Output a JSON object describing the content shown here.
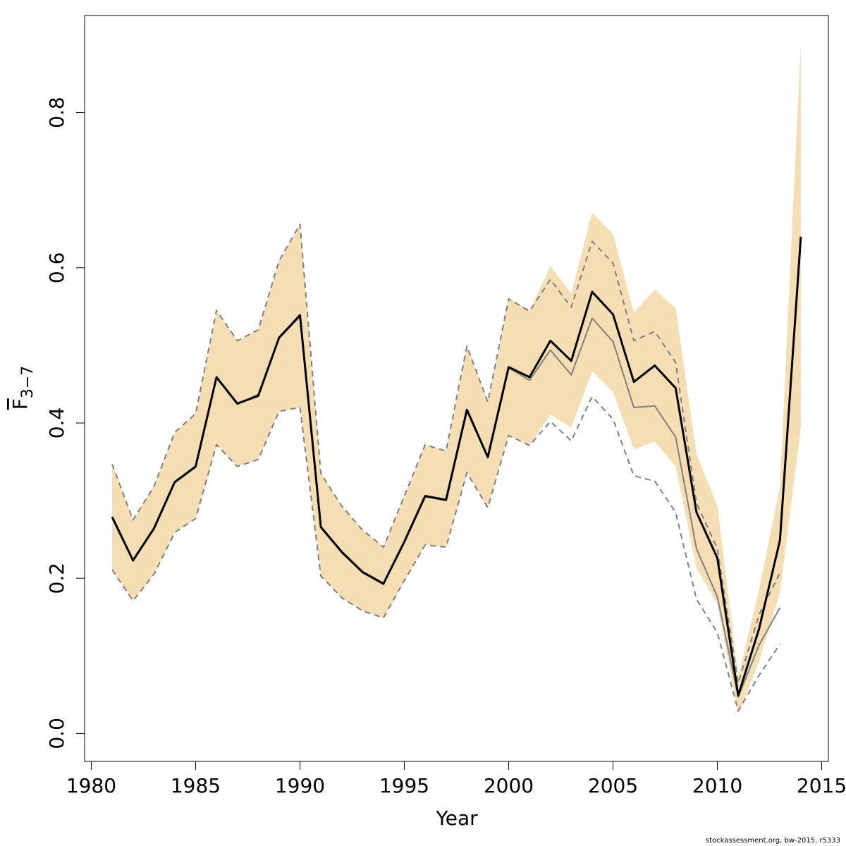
{
  "chart_data": {
    "type": "line",
    "xlabel": "Year",
    "ylabel": "F",
    "ylabel_sub": "3−7",
    "footer": "stockassessment.org, bw-2015, r5333",
    "x": [
      1981,
      1982,
      1983,
      1984,
      1985,
      1986,
      1987,
      1988,
      1989,
      1990,
      1991,
      1992,
      1993,
      1994,
      1995,
      1996,
      1997,
      1998,
      1999,
      2000,
      2001,
      2002,
      2003,
      2004,
      2005,
      2006,
      2007,
      2008,
      2009,
      2010,
      2011,
      2012,
      2013,
      2014
    ],
    "band": {
      "color": "#f5deb3",
      "upper": [
        0.347,
        0.275,
        0.318,
        0.388,
        0.412,
        0.545,
        0.506,
        0.52,
        0.609,
        0.656,
        0.335,
        0.293,
        0.262,
        0.24,
        0.306,
        0.372,
        0.364,
        0.499,
        0.427,
        0.561,
        0.545,
        0.602,
        0.567,
        0.671,
        0.643,
        0.542,
        0.572,
        0.548,
        0.36,
        0.293,
        0.073,
        0.185,
        0.318,
        0.89
      ],
      "lower": [
        0.211,
        0.171,
        0.205,
        0.259,
        0.277,
        0.372,
        0.344,
        0.353,
        0.415,
        0.42,
        0.203,
        0.175,
        0.158,
        0.149,
        0.197,
        0.243,
        0.24,
        0.336,
        0.291,
        0.384,
        0.371,
        0.411,
        0.394,
        0.467,
        0.44,
        0.366,
        0.376,
        0.344,
        0.213,
        0.167,
        0.025,
        0.093,
        0.182,
        0.395
      ]
    },
    "series": [
      {
        "color": "#7f7f7f",
        "dash": true,
        "width": 2,
        "values": [
          0.347,
          0.275,
          0.318,
          0.388,
          0.412,
          0.545,
          0.506,
          0.52,
          0.609,
          0.656,
          0.335,
          0.293,
          0.262,
          0.24,
          0.306,
          0.372,
          0.364,
          0.499,
          0.427,
          0.56,
          0.544,
          0.585,
          0.549,
          0.634,
          0.606,
          0.506,
          0.518,
          0.478,
          0.297,
          0.238,
          0.065,
          0.153,
          0.207,
          null
        ]
      },
      {
        "color": "#7f7f7f",
        "dash": true,
        "width": 2,
        "values": [
          0.211,
          0.171,
          0.205,
          0.259,
          0.277,
          0.372,
          0.344,
          0.353,
          0.415,
          0.42,
          0.203,
          0.175,
          0.158,
          0.149,
          0.197,
          0.243,
          0.24,
          0.336,
          0.291,
          0.384,
          0.371,
          0.402,
          0.377,
          0.434,
          0.405,
          0.332,
          0.325,
          0.285,
          0.173,
          0.13,
          0.029,
          0.075,
          0.115,
          null
        ]
      },
      {
        "color": "#7f7f7f",
        "dash": false,
        "width": 2,
        "values": [
          0.277,
          0.222,
          0.263,
          0.323,
          0.343,
          0.458,
          0.424,
          0.437,
          0.509,
          0.537,
          0.265,
          0.233,
          0.207,
          0.192,
          0.246,
          0.305,
          0.3,
          0.416,
          0.355,
          0.471,
          0.455,
          0.494,
          0.462,
          0.535,
          0.505,
          0.42,
          0.422,
          0.382,
          0.238,
          0.176,
          0.047,
          0.114,
          0.162,
          null
        ]
      },
      {
        "color": "#000000",
        "dash": false,
        "width": 3,
        "values": [
          0.279,
          0.223,
          0.264,
          0.324,
          0.344,
          0.459,
          0.425,
          0.435,
          0.51,
          0.539,
          0.266,
          0.234,
          0.208,
          0.193,
          0.247,
          0.306,
          0.301,
          0.417,
          0.356,
          0.472,
          0.459,
          0.506,
          0.48,
          0.569,
          0.54,
          0.453,
          0.474,
          0.445,
          0.285,
          0.226,
          0.049,
          0.135,
          0.249,
          0.64
        ]
      }
    ],
    "xlim": [
      1979.68,
      2015.32
    ],
    "ylim": [
      -0.036,
      0.925
    ],
    "xticks": [
      1980,
      1985,
      1990,
      1995,
      2000,
      2005,
      2010,
      2015
    ],
    "yticks": [
      {
        "value": 0,
        "label": "0.0"
      },
      0.2,
      0.4,
      0.6,
      0.8
    ]
  }
}
